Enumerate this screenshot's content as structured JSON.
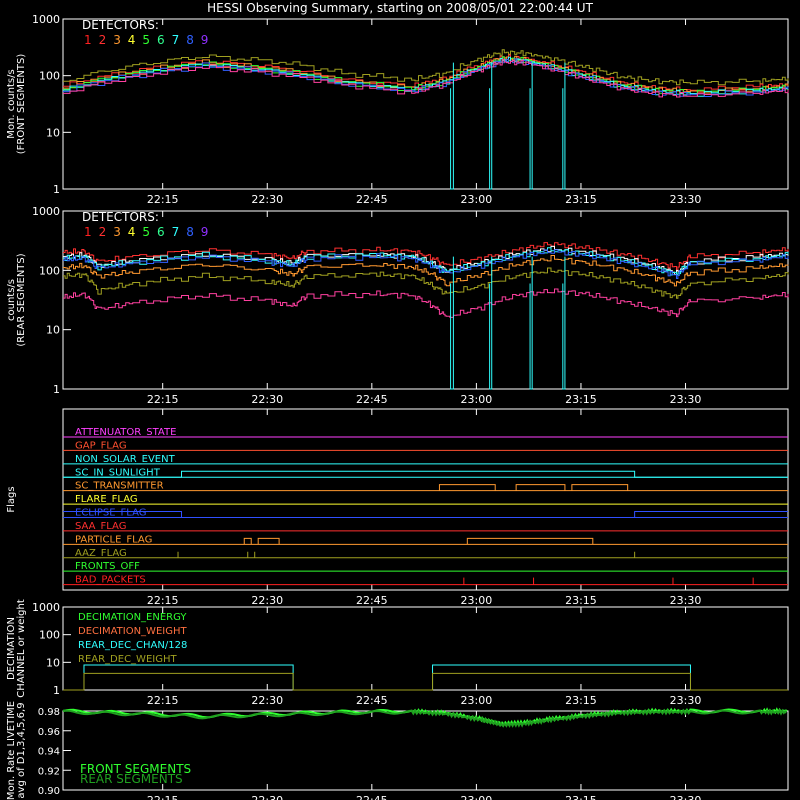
{
  "title": "HESSI Observing Summary, starting on 2008/05/01 22:00:44 UT",
  "time_ticks": [
    "22:15",
    "22:30",
    "22:45",
    "23:00",
    "23:15",
    "23:30"
  ],
  "colors": {
    "axis": "#ffffff",
    "detectors": [
      "#ff2020",
      "#ff3030",
      "#ff9930",
      "#ffff30",
      "#30ff30",
      "#30ff90",
      "#30ffff",
      "#3060ff",
      "#9030ff"
    ]
  },
  "chart_data": [
    {
      "type": "line",
      "name": "front",
      "ylabel": [
        "Mon. counts/s",
        "(FRONT SEGMENTS)"
      ],
      "ylim": [
        1,
        1000
      ],
      "yscale": "log",
      "yticks": [
        "1",
        "10",
        "100",
        "1000"
      ],
      "legend_title": "DETECTORS:",
      "legend_numbers": [
        "1",
        "2",
        "3",
        "4",
        "5",
        "6",
        "7",
        "8",
        "9"
      ],
      "x_minutes": [
        0,
        10,
        20,
        30,
        40,
        50,
        55,
        60,
        63,
        66,
        70,
        75,
        80,
        85,
        90,
        100,
        104
      ],
      "series": [
        {
          "color": "#a0a020",
          "values": [
            80,
            150,
            220,
            180,
            110,
            85,
            110,
            200,
            260,
            250,
            200,
            140,
            95,
            80,
            75,
            80,
            90
          ]
        },
        {
          "color": "#ff3030",
          "values": [
            65,
            120,
            180,
            140,
            85,
            65,
            90,
            160,
            210,
            200,
            160,
            110,
            75,
            60,
            55,
            65,
            70
          ]
        },
        {
          "color": "#ff9930",
          "values": [
            60,
            115,
            170,
            130,
            80,
            60,
            85,
            150,
            200,
            195,
            150,
            100,
            70,
            58,
            52,
            60,
            66
          ]
        },
        {
          "color": "#30ff30",
          "values": [
            58,
            110,
            165,
            125,
            78,
            58,
            80,
            145,
            195,
            190,
            145,
            98,
            68,
            55,
            50,
            58,
            64
          ]
        },
        {
          "color": "#30ffff",
          "values": [
            55,
            105,
            160,
            120,
            75,
            55,
            78,
            140,
            190,
            185,
            140,
            95,
            65,
            52,
            48,
            55,
            60
          ]
        },
        {
          "color": "#3060ff",
          "values": [
            52,
            100,
            150,
            115,
            72,
            52,
            75,
            135,
            180,
            175,
            135,
            90,
            62,
            50,
            46,
            52,
            58
          ]
        },
        {
          "color": "#ff40a0",
          "values": [
            50,
            95,
            145,
            110,
            70,
            50,
            72,
            130,
            175,
            170,
            130,
            88,
            60,
            48,
            44,
            50,
            56
          ]
        }
      ]
    },
    {
      "type": "line",
      "name": "rear",
      "ylabel": [
        "counts/s",
        "(REAR SEGMENTS)"
      ],
      "ylim": [
        1,
        1000
      ],
      "yscale": "log",
      "yticks": [
        "1",
        "10",
        "100",
        "1000"
      ],
      "legend_title": "DETECTORS:",
      "legend_numbers": [
        "1",
        "2",
        "3",
        "4",
        "5",
        "6",
        "7",
        "8",
        "9"
      ],
      "x_minutes": [
        0,
        3,
        5,
        10,
        20,
        30,
        33,
        35,
        45,
        50,
        53,
        55,
        60,
        65,
        70,
        75,
        80,
        85,
        88,
        90,
        100,
        104
      ],
      "series": [
        {
          "color": "#ff3030",
          "values": [
            200,
            210,
            140,
            170,
            220,
            180,
            160,
            210,
            220,
            210,
            160,
            120,
            160,
            220,
            280,
            240,
            190,
            140,
            110,
            170,
            200,
            230
          ]
        },
        {
          "color": "#ffffff",
          "values": [
            170,
            180,
            120,
            145,
            185,
            150,
            130,
            175,
            185,
            175,
            130,
            100,
            135,
            190,
            230,
            200,
            160,
            115,
            90,
            140,
            170,
            190
          ]
        },
        {
          "color": "#30ffff",
          "values": [
            160,
            170,
            115,
            140,
            180,
            145,
            125,
            170,
            180,
            170,
            125,
            95,
            130,
            180,
            220,
            190,
            150,
            110,
            85,
            135,
            160,
            185
          ]
        },
        {
          "color": "#3060ff",
          "values": [
            150,
            160,
            110,
            130,
            170,
            135,
            118,
            160,
            170,
            160,
            118,
            90,
            122,
            170,
            210,
            180,
            140,
            105,
            80,
            128,
            150,
            175
          ]
        },
        {
          "color": "#ff9930",
          "values": [
            110,
            120,
            80,
            95,
            125,
            100,
            85,
            115,
            125,
            115,
            85,
            60,
            85,
            125,
            160,
            135,
            105,
            75,
            58,
            92,
            110,
            125
          ]
        },
        {
          "color": "#a0a020",
          "values": [
            80,
            85,
            45,
            60,
            80,
            65,
            55,
            80,
            85,
            80,
            55,
            40,
            55,
            80,
            100,
            85,
            65,
            45,
            35,
            60,
            75,
            85
          ]
        },
        {
          "color": "#ff40a0",
          "values": [
            35,
            40,
            22,
            28,
            38,
            30,
            25,
            38,
            40,
            38,
            25,
            16,
            24,
            38,
            45,
            40,
            30,
            22,
            18,
            30,
            35,
            40
          ]
        }
      ]
    },
    {
      "type": "line",
      "name": "flags",
      "ylabel": [
        "Flags"
      ],
      "flags": [
        {
          "label": "ATTENUATOR_STATE",
          "color": "#ff40ff"
        },
        {
          "label": "GAP_FLAG",
          "color": "#ff5030"
        },
        {
          "label": "NON_SOLAR_EVENT",
          "color": "#30ffff"
        },
        {
          "label": "SC_IN_SUNLIGHT",
          "color": "#30ffff"
        },
        {
          "label": "SC_TRANSMITTER",
          "color": "#ff9930"
        },
        {
          "label": "FLARE_FLAG",
          "color": "#ffff30"
        },
        {
          "label": "ECLIPSE_FLAG",
          "color": "#3050ff"
        },
        {
          "label": "SAA_FLAG",
          "color": "#ff3030"
        },
        {
          "label": "PARTICLE_FLAG",
          "color": "#ff9930"
        },
        {
          "label": "AAZ_FLAG",
          "color": "#a0a020"
        },
        {
          "label": "FRONTS_OFF",
          "color": "#30ff30"
        },
        {
          "label": "BAD_PACKETS",
          "color": "#ff2020"
        }
      ]
    },
    {
      "type": "line",
      "name": "decimation",
      "ylabel": [
        "DECIMATION",
        "CHANNEL or weight"
      ],
      "ylim": [
        1,
        1000
      ],
      "yscale": "log",
      "yticks": [
        "1",
        "10",
        "100",
        "1000"
      ],
      "legend": [
        {
          "label": "DECIMATION_ENERGY",
          "color": "#30ff30"
        },
        {
          "label": "DECIMATION_WEIGHT",
          "color": "#ff7040"
        },
        {
          "label": "REAR_DEC_CHAN/128",
          "color": "#30ffff"
        },
        {
          "label": "REAR_DEC_WEIGHT",
          "color": "#a0a020"
        }
      ],
      "x_minutes": [
        0,
        3,
        3.01,
        33,
        33.01,
        53,
        53.01,
        90,
        90.01,
        104
      ],
      "series": [
        {
          "name": "REAR_DEC_CHAN/128",
          "color": "#30ffff",
          "values": [
            1,
            1,
            8,
            8,
            1,
            1,
            8,
            8,
            1,
            1
          ]
        },
        {
          "name": "REAR_DEC_WEIGHT",
          "color": "#a0a020",
          "values": [
            1,
            1,
            4,
            4,
            1,
            1,
            4,
            4,
            1,
            1
          ]
        }
      ]
    },
    {
      "type": "line",
      "name": "livetime",
      "ylabel": [
        "Mon. Rate LIVETIME",
        "avg of D1,3,4,5,6,9"
      ],
      "ylim": [
        0.9,
        0.98
      ],
      "yticks": [
        "0.90",
        "0.92",
        "0.94",
        "0.96",
        "0.98"
      ],
      "legend": [
        {
          "label": "FRONT SEGMENTS",
          "color": "#30ff30"
        },
        {
          "label": "REAR SEGMENTS",
          "color": "#20a020"
        }
      ],
      "x_minutes": [
        0,
        10,
        20,
        30,
        40,
        50,
        55,
        60,
        63,
        66,
        70,
        75,
        80,
        85,
        90,
        100,
        104
      ],
      "series": [
        {
          "name": "FRONT SEGMENTS",
          "color": "#30ff30",
          "values": [
            0.98,
            0.978,
            0.975,
            0.977,
            0.979,
            0.98,
            0.978,
            0.972,
            0.967,
            0.968,
            0.972,
            0.976,
            0.979,
            0.98,
            0.98,
            0.98,
            0.98
          ]
        },
        {
          "name": "REAR SEGMENTS",
          "color": "#20a020",
          "values": [
            0.979,
            0.977,
            0.974,
            0.976,
            0.978,
            0.979,
            0.977,
            0.971,
            0.966,
            0.967,
            0.971,
            0.975,
            0.978,
            0.979,
            0.979,
            0.979,
            0.979
          ]
        }
      ]
    }
  ]
}
